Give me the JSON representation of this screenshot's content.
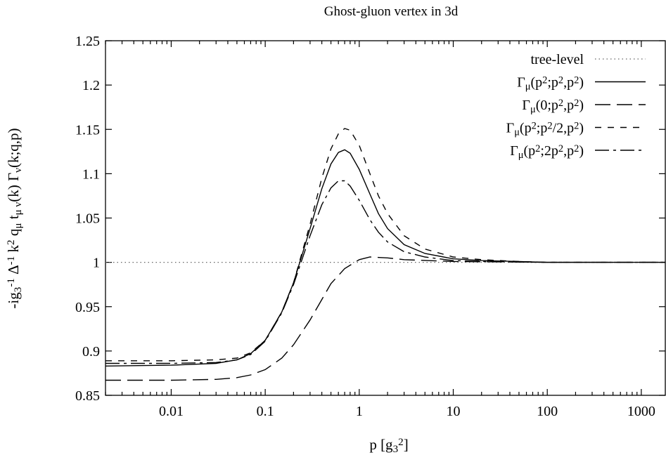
{
  "chart_data": {
    "type": "line",
    "title": "Ghost-gluon vertex in 3d",
    "xlabel": {
      "base": "p [g",
      "sub": "3",
      "sup": "2",
      "tail": "]"
    },
    "ylabel": [
      {
        "t": "-ig"
      },
      {
        "t": "3",
        "sub": true
      },
      {
        "t": "-1",
        "sup": true
      },
      {
        "t": " Δ"
      },
      {
        "t": "-1",
        "sup": true
      },
      {
        "t": " k"
      },
      {
        "t": "2",
        "sup": true
      },
      {
        "t": " q"
      },
      {
        "t": "μ",
        "sub": true
      },
      {
        "t": " t"
      },
      {
        "t": "μ ν",
        "sub": true
      },
      {
        "t": "(k) Γ"
      },
      {
        "t": "ν",
        "sub": true
      },
      {
        "t": "(k;q,p)"
      }
    ],
    "x_scale": "log",
    "xlim": [
      0.002,
      1800
    ],
    "ylim": [
      0.85,
      1.25
    ],
    "xticks": [
      {
        "v": 0.01,
        "label": "0.01"
      },
      {
        "v": 0.1,
        "label": "0.1"
      },
      {
        "v": 1,
        "label": "1"
      },
      {
        "v": 10,
        "label": "10"
      },
      {
        "v": 100,
        "label": "100"
      },
      {
        "v": 1000,
        "label": "1000"
      }
    ],
    "yticks": [
      {
        "v": 0.85,
        "label": "0.85"
      },
      {
        "v": 0.9,
        "label": "0.9"
      },
      {
        "v": 0.95,
        "label": "0.95"
      },
      {
        "v": 1.0,
        "label": "1"
      },
      {
        "v": 1.05,
        "label": "1.05"
      },
      {
        "v": 1.1,
        "label": "1.1"
      },
      {
        "v": 1.15,
        "label": "1.15"
      },
      {
        "v": 1.2,
        "label": "1.2"
      },
      {
        "v": 1.25,
        "label": "1.25"
      }
    ],
    "grid": false,
    "legend_position": "top-right",
    "series": [
      {
        "legend": [
          {
            "t": "tree-level"
          }
        ],
        "dash": "dotted",
        "points": [
          [
            0.002,
            1.0
          ],
          [
            1800,
            1.0
          ]
        ]
      },
      {
        "legend": [
          {
            "t": "Γ"
          },
          {
            "t": "μ",
            "sub": true
          },
          {
            "t": "(p"
          },
          {
            "t": "2",
            "sup": true
          },
          {
            "t": ";p"
          },
          {
            "t": "2",
            "sup": true
          },
          {
            "t": ",p"
          },
          {
            "t": "2",
            "sup": true
          },
          {
            "t": ")"
          }
        ],
        "dash": "solid",
        "points": [
          [
            0.002,
            0.883
          ],
          [
            0.01,
            0.884
          ],
          [
            0.03,
            0.886
          ],
          [
            0.05,
            0.89
          ],
          [
            0.07,
            0.897
          ],
          [
            0.1,
            0.912
          ],
          [
            0.15,
            0.944
          ],
          [
            0.2,
            0.977
          ],
          [
            0.3,
            1.038
          ],
          [
            0.4,
            1.083
          ],
          [
            0.5,
            1.111
          ],
          [
            0.6,
            1.124
          ],
          [
            0.7,
            1.127
          ],
          [
            0.8,
            1.123
          ],
          [
            1.0,
            1.105
          ],
          [
            1.3,
            1.077
          ],
          [
            1.6,
            1.055
          ],
          [
            2,
            1.038
          ],
          [
            3,
            1.02
          ],
          [
            5,
            1.01
          ],
          [
            10,
            1.004
          ],
          [
            20,
            1.002
          ],
          [
            50,
            1.001
          ],
          [
            100,
            1.0
          ],
          [
            1800,
            1.0
          ]
        ]
      },
      {
        "legend": [
          {
            "t": "Γ"
          },
          {
            "t": "μ",
            "sub": true
          },
          {
            "t": "(0;p"
          },
          {
            "t": "2",
            "sup": true
          },
          {
            "t": ",p"
          },
          {
            "t": "2",
            "sup": true
          },
          {
            "t": ")"
          }
        ],
        "dash": "longdash",
        "points": [
          [
            0.002,
            0.867
          ],
          [
            0.01,
            0.867
          ],
          [
            0.03,
            0.868
          ],
          [
            0.05,
            0.87
          ],
          [
            0.07,
            0.873
          ],
          [
            0.1,
            0.879
          ],
          [
            0.15,
            0.892
          ],
          [
            0.2,
            0.907
          ],
          [
            0.3,
            0.935
          ],
          [
            0.4,
            0.958
          ],
          [
            0.5,
            0.976
          ],
          [
            0.7,
            0.993
          ],
          [
            1.0,
            1.003
          ],
          [
            1.3,
            1.006
          ],
          [
            2,
            1.005
          ],
          [
            3,
            1.003
          ],
          [
            10,
            1.001
          ],
          [
            100,
            1.0
          ],
          [
            1800,
            1.0
          ]
        ]
      },
      {
        "legend": [
          {
            "t": "Γ"
          },
          {
            "t": "μ",
            "sub": true
          },
          {
            "t": "(p"
          },
          {
            "t": "2",
            "sup": true
          },
          {
            "t": ";p"
          },
          {
            "t": "2",
            "sup": true
          },
          {
            "t": "/2,p"
          },
          {
            "t": "2",
            "sup": true
          },
          {
            "t": ")"
          }
        ],
        "dash": "shortdash",
        "points": [
          [
            0.002,
            0.889
          ],
          [
            0.01,
            0.889
          ],
          [
            0.03,
            0.89
          ],
          [
            0.05,
            0.892
          ],
          [
            0.07,
            0.898
          ],
          [
            0.1,
            0.912
          ],
          [
            0.15,
            0.944
          ],
          [
            0.2,
            0.977
          ],
          [
            0.3,
            1.043
          ],
          [
            0.4,
            1.095
          ],
          [
            0.5,
            1.128
          ],
          [
            0.6,
            1.145
          ],
          [
            0.7,
            1.151
          ],
          [
            0.8,
            1.149
          ],
          [
            1.0,
            1.132
          ],
          [
            1.3,
            1.1
          ],
          [
            1.6,
            1.075
          ],
          [
            2,
            1.055
          ],
          [
            3,
            1.03
          ],
          [
            5,
            1.015
          ],
          [
            10,
            1.006
          ],
          [
            20,
            1.003
          ],
          [
            50,
            1.001
          ],
          [
            100,
            1.0
          ],
          [
            1800,
            1.0
          ]
        ]
      },
      {
        "legend": [
          {
            "t": "Γ"
          },
          {
            "t": "μ",
            "sub": true
          },
          {
            "t": "(p"
          },
          {
            "t": "2",
            "sup": true
          },
          {
            "t": ";2p"
          },
          {
            "t": "2",
            "sup": true
          },
          {
            "t": ",p"
          },
          {
            "t": "2",
            "sup": true
          },
          {
            "t": ")"
          }
        ],
        "dash": "dashdot",
        "points": [
          [
            0.002,
            0.886
          ],
          [
            0.01,
            0.886
          ],
          [
            0.03,
            0.887
          ],
          [
            0.05,
            0.89
          ],
          [
            0.07,
            0.896
          ],
          [
            0.1,
            0.911
          ],
          [
            0.15,
            0.943
          ],
          [
            0.2,
            0.975
          ],
          [
            0.3,
            1.03
          ],
          [
            0.4,
            1.065
          ],
          [
            0.5,
            1.084
          ],
          [
            0.6,
            1.092
          ],
          [
            0.7,
            1.092
          ],
          [
            0.8,
            1.086
          ],
          [
            1.0,
            1.07
          ],
          [
            1.3,
            1.048
          ],
          [
            1.6,
            1.034
          ],
          [
            2,
            1.023
          ],
          [
            3,
            1.012
          ],
          [
            5,
            1.006
          ],
          [
            10,
            1.002
          ],
          [
            20,
            1.001
          ],
          [
            100,
            1.0
          ],
          [
            1800,
            1.0
          ]
        ]
      }
    ]
  }
}
